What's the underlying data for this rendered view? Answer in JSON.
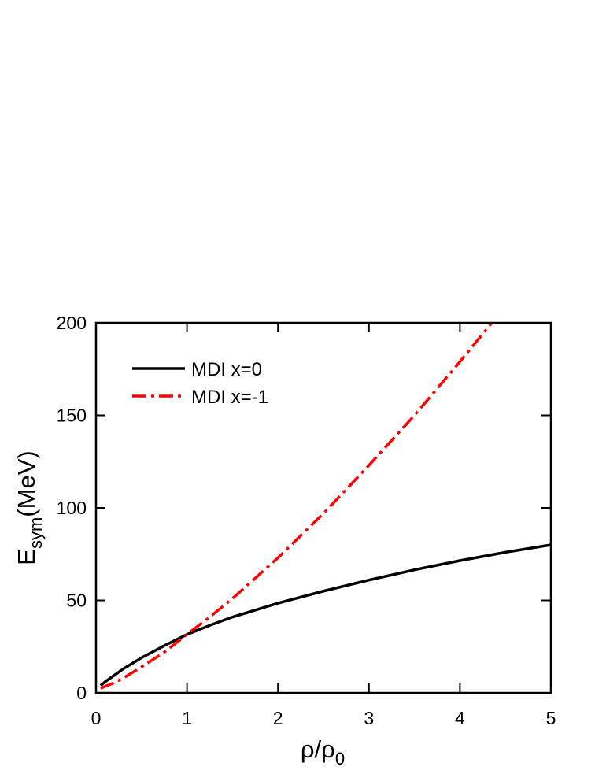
{
  "chart_data": {
    "type": "line",
    "x_label": {
      "text": "ρ/ρ",
      "subscript": "0"
    },
    "y_label": {
      "text": "E",
      "subscript": "sym",
      "suffix": "(MeV)"
    },
    "xlim": [
      0,
      5
    ],
    "xticks": [
      0,
      1,
      2,
      3,
      4,
      5
    ],
    "ylim": [
      0,
      200
    ],
    "yticks": [
      0,
      50,
      100,
      150,
      200
    ],
    "legend": "upper-left",
    "series": [
      {
        "name": "MDI x=0",
        "color": "#000000",
        "dash": "solid",
        "x": [
          0.05,
          0.1,
          0.2,
          0.3,
          0.5,
          0.75,
          1,
          1.25,
          1.5,
          2,
          2.5,
          3,
          3.5,
          4,
          4.5,
          5
        ],
        "values": [
          4,
          6,
          9.5,
          13,
          19,
          25.5,
          31.6,
          36.5,
          41,
          48.5,
          55,
          61,
          66.5,
          71.5,
          76,
          80
        ]
      },
      {
        "name": "MDI x=-1",
        "color": "#ff0000",
        "dash": "dashdot",
        "x": [
          0.05,
          0.1,
          0.2,
          0.3,
          0.5,
          0.75,
          1,
          1.25,
          1.5,
          2,
          2.5,
          3,
          3.5,
          4,
          4.35
        ],
        "values": [
          2.5,
          3.5,
          5.5,
          8,
          14,
          22,
          31.6,
          41,
          51,
          73,
          97,
          123,
          150,
          179,
          200
        ]
      }
    ]
  }
}
